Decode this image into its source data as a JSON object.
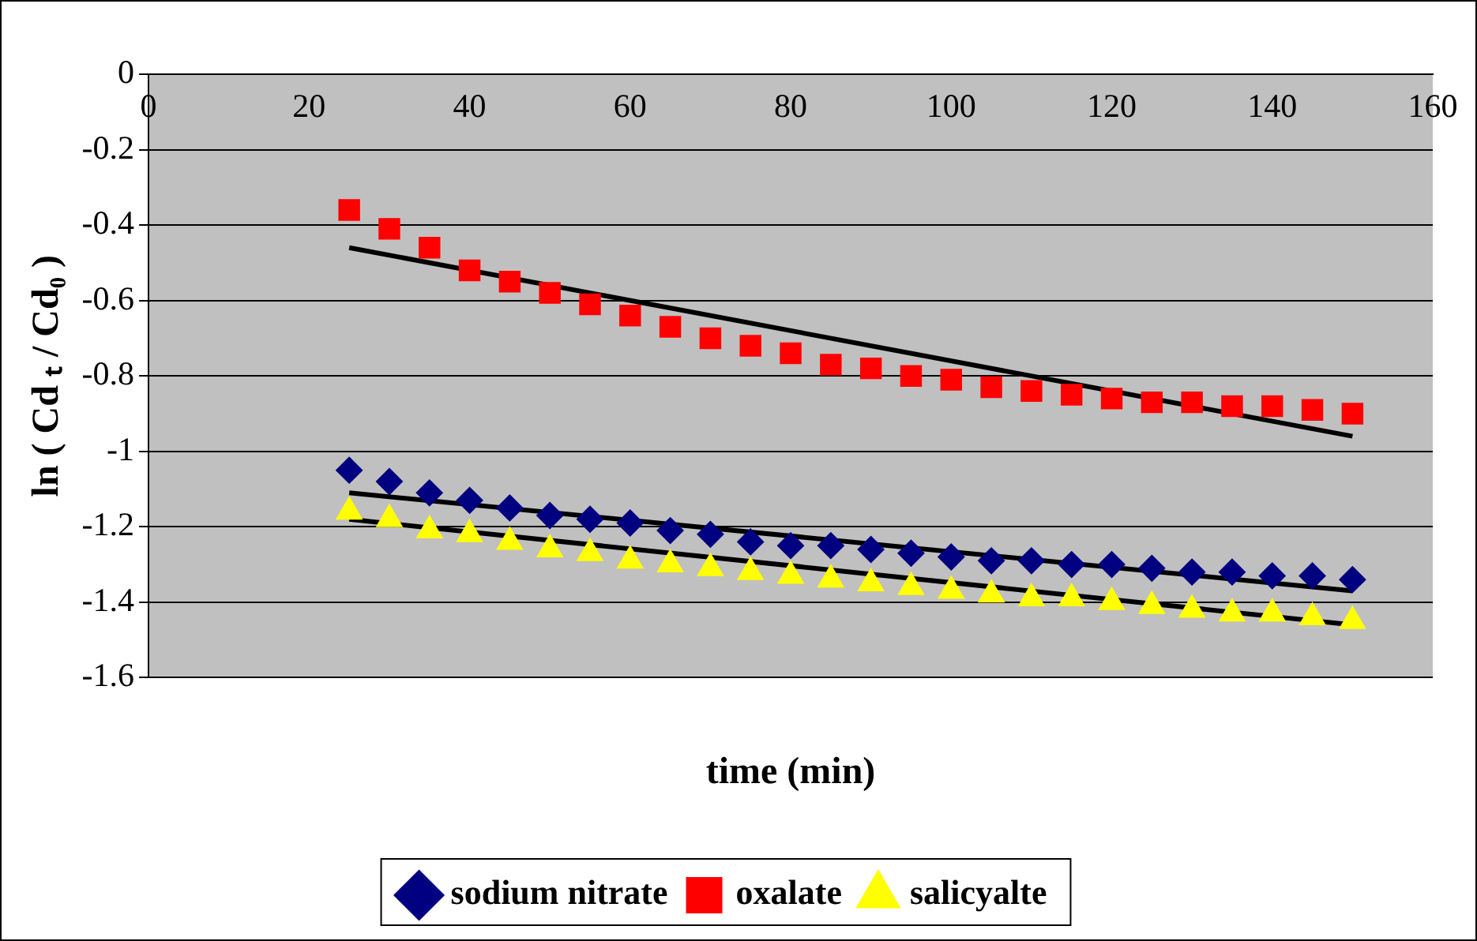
{
  "chart_data": {
    "type": "scatter",
    "xlabel": "time (min)",
    "ylabel": "ln ( Cd ₜ / Cd₀ )",
    "x": [
      25,
      30,
      35,
      40,
      45,
      50,
      55,
      60,
      65,
      70,
      75,
      80,
      85,
      90,
      95,
      100,
      105,
      110,
      115,
      120,
      125,
      130,
      135,
      140,
      145,
      150
    ],
    "series": [
      {
        "name": "sodium nitrate",
        "color": "#000080",
        "marker": "diamond",
        "values": [
          -1.05,
          -1.08,
          -1.11,
          -1.13,
          -1.15,
          -1.17,
          -1.18,
          -1.19,
          -1.21,
          -1.22,
          -1.24,
          -1.25,
          -1.25,
          -1.26,
          -1.27,
          -1.28,
          -1.29,
          -1.29,
          -1.3,
          -1.3,
          -1.31,
          -1.32,
          -1.32,
          -1.33,
          -1.33,
          -1.34
        ]
      },
      {
        "name": "oxalate",
        "color": "#ff0000",
        "marker": "square",
        "values": [
          -0.36,
          -0.41,
          -0.46,
          -0.52,
          -0.55,
          -0.58,
          -0.61,
          -0.64,
          -0.67,
          -0.7,
          -0.72,
          -0.74,
          -0.77,
          -0.78,
          -0.8,
          -0.81,
          -0.83,
          -0.84,
          -0.85,
          -0.86,
          -0.87,
          -0.87,
          -0.88,
          -0.88,
          -0.89,
          -0.9
        ]
      },
      {
        "name": "salicyalte",
        "color": "#ffff00",
        "marker": "triangle",
        "values": [
          -1.16,
          -1.18,
          -1.21,
          -1.22,
          -1.24,
          -1.26,
          -1.27,
          -1.29,
          -1.3,
          -1.31,
          -1.32,
          -1.33,
          -1.34,
          -1.35,
          -1.36,
          -1.37,
          -1.38,
          -1.39,
          -1.39,
          -1.4,
          -1.41,
          -1.42,
          -1.43,
          -1.43,
          -1.44,
          -1.45
        ]
      },
      {
        "type": "line",
        "color": "#000000",
        "marker": "none",
        "values": [
          -1.11,
          null,
          null,
          null,
          null,
          null,
          null,
          null,
          null,
          null,
          null,
          null,
          null,
          null,
          null,
          null,
          null,
          null,
          null,
          null,
          null,
          null,
          null,
          null,
          null,
          -1.37
        ]
      },
      {
        "type": "line",
        "color": "#000000",
        "marker": "none",
        "values": [
          -0.46,
          null,
          null,
          null,
          null,
          null,
          null,
          null,
          null,
          null,
          null,
          null,
          null,
          null,
          null,
          null,
          null,
          null,
          null,
          null,
          null,
          null,
          null,
          null,
          null,
          -0.96
        ]
      },
      {
        "type": "line",
        "color": "#000000",
        "marker": "none",
        "values": [
          -1.18,
          null,
          null,
          null,
          null,
          null,
          null,
          null,
          null,
          null,
          null,
          null,
          null,
          null,
          null,
          null,
          null,
          null,
          null,
          null,
          null,
          null,
          null,
          null,
          null,
          -1.46
        ]
      }
    ],
    "xlim": [
      0,
      160
    ],
    "xticks": [
      0,
      20,
      40,
      60,
      80,
      100,
      120,
      140,
      160
    ],
    "ylim": [
      -1.6,
      0
    ],
    "yticks": [
      0,
      -0.2,
      -0.4,
      -0.6,
      -0.8,
      -1,
      -1.2,
      -1.4,
      -1.6
    ],
    "grid": "y",
    "legend": "bottom"
  }
}
